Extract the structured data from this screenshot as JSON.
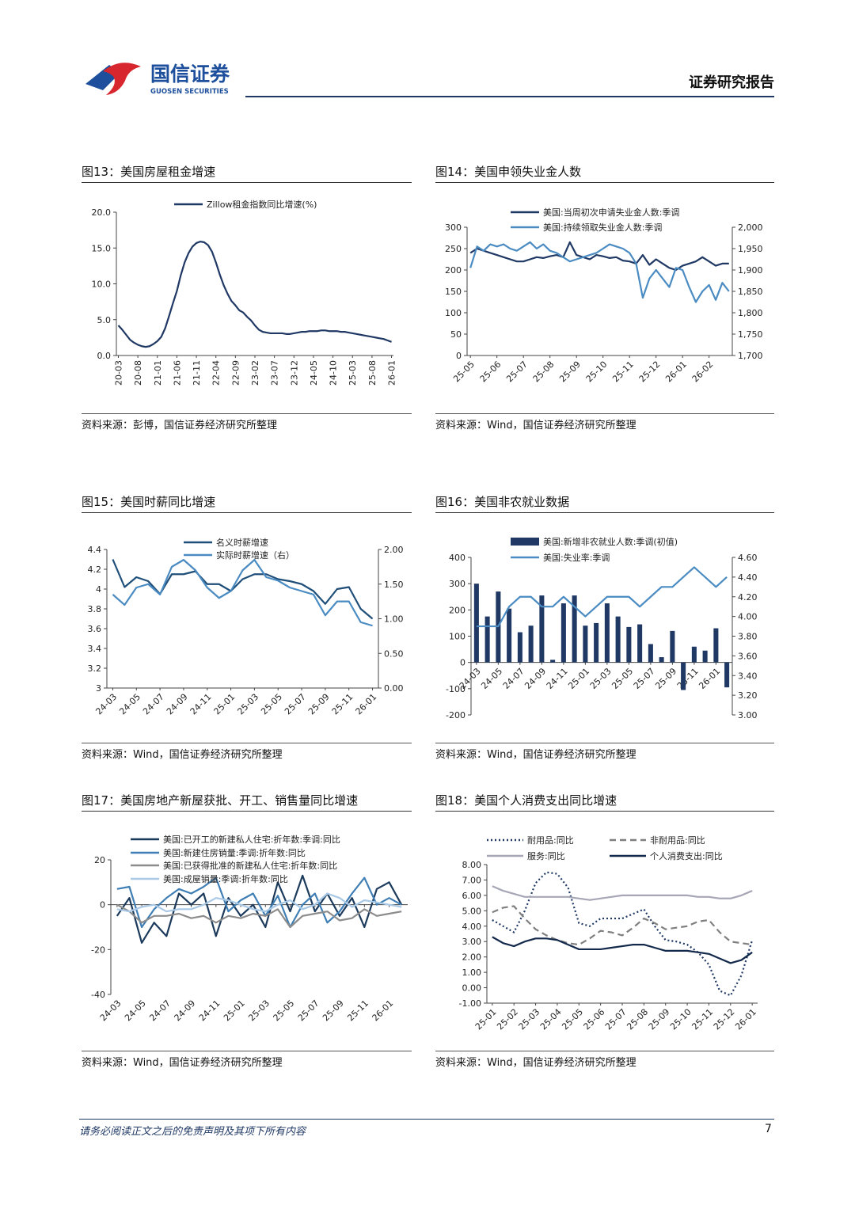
{
  "header": {
    "logo_cn": "国信证券",
    "logo_en": "GUOSEN SECURITIES",
    "report_type": "证券研究报告"
  },
  "footer": {
    "disclaimer": "请务必阅读正文之后的免责声明及其项下所有内容",
    "page": 7
  },
  "chart_data": [
    {
      "type": "line",
      "title": "图13：美国房屋租金增速",
      "source": "资料来源：彭博，国信证券经济研究所整理",
      "categories": [
        "20-03",
        null,
        null,
        null,
        null,
        "20-08",
        null,
        null,
        null,
        null,
        "21-01",
        null,
        null,
        null,
        null,
        "21-06",
        null,
        null,
        null,
        null,
        "21-11",
        null,
        null,
        null,
        null,
        "22-04",
        null,
        null,
        null,
        null,
        "22-09",
        null,
        null,
        null,
        null,
        "23-02",
        null,
        null,
        null,
        null,
        "23-07",
        null,
        null,
        null,
        null,
        "23-12",
        null,
        null,
        null,
        null,
        "24-05",
        null,
        null,
        null,
        null,
        "24-10",
        null,
        null,
        null,
        null,
        "25-03",
        null,
        null,
        null,
        null,
        "25-08",
        null,
        null,
        null,
        null,
        "26-01"
      ],
      "series": [
        {
          "name": "Zillow租金指数同比增速(%)",
          "color": "#1f3864",
          "values": [
            4.2,
            3.6,
            2.9,
            2.2,
            1.8,
            1.5,
            1.3,
            1.2,
            1.3,
            1.6,
            2.0,
            2.6,
            3.8,
            5.5,
            7.3,
            9.0,
            11.2,
            13.0,
            14.3,
            15.2,
            15.7,
            15.9,
            15.8,
            15.4,
            14.5,
            13.0,
            11.3,
            9.8,
            8.6,
            7.6,
            7.0,
            6.3,
            6.0,
            5.4,
            4.9,
            4.2,
            3.6,
            3.3,
            3.2,
            3.1,
            3.1,
            3.1,
            3.1,
            3.0,
            3.0,
            3.1,
            3.2,
            3.3,
            3.3,
            3.4,
            3.4,
            3.4,
            3.5,
            3.5,
            3.4,
            3.4,
            3.4,
            3.3,
            3.3,
            3.2,
            3.1,
            3.0,
            2.9,
            2.8,
            2.7,
            2.6,
            2.5,
            2.4,
            2.3,
            2.1,
            1.9
          ]
        }
      ],
      "ylim": [
        0,
        20
      ],
      "yticks": [
        {
          "value": 0,
          "label": "0.0"
        },
        {
          "value": 5,
          "label": "5.0"
        },
        {
          "value": 10,
          "label": "10.0"
        },
        {
          "value": 15,
          "label": "15.0"
        },
        {
          "value": 20,
          "label": "20.0"
        }
      ]
    },
    {
      "type": "line",
      "title": "图14：美国申领失业金人数",
      "source": "资料来源：Wind，国信证券经济研究所整理",
      "categories": [
        "25-05",
        null,
        null,
        null,
        "25-06",
        null,
        null,
        null,
        "25-07",
        null,
        null,
        null,
        "25-08",
        null,
        null,
        null,
        "25-09",
        null,
        null,
        null,
        "25-10",
        null,
        null,
        null,
        "25-11",
        null,
        null,
        null,
        "25-12",
        null,
        null,
        null,
        "26-01",
        null,
        null,
        null,
        "26-02",
        null,
        null,
        null
      ],
      "series": [
        {
          "name": "美国:当周初次申请失业金人数:季调",
          "color": "#1f3864",
          "values": [
            240,
            250,
            245,
            240,
            235,
            230,
            225,
            220,
            220,
            225,
            230,
            228,
            232,
            235,
            230,
            265,
            235,
            230,
            225,
            235,
            232,
            228,
            230,
            222,
            220,
            215,
            235,
            212,
            225,
            215,
            205,
            200,
            210,
            215,
            220,
            230,
            220,
            210,
            215,
            215
          ]
        },
        {
          "name": "美国:持续领取失业金人数:季调",
          "color": "#4a8bc2",
          "axis": "y2",
          "values": [
            1905,
            1955,
            1945,
            1960,
            1955,
            1960,
            1950,
            1945,
            1955,
            1965,
            1950,
            1960,
            1945,
            1940,
            1930,
            1920,
            1925,
            1930,
            1935,
            1940,
            1950,
            1960,
            1955,
            1950,
            1940,
            1915,
            1835,
            1880,
            1900,
            1880,
            1860,
            1905,
            1900,
            1860,
            1825,
            1850,
            1865,
            1830,
            1870,
            1850
          ]
        }
      ],
      "ylim": [
        0,
        300
      ],
      "yticks": [
        0,
        50,
        100,
        150,
        200,
        250,
        300
      ],
      "y2lim": [
        1700,
        2000
      ],
      "y2ticks": [
        {
          "value": 1700,
          "label": "1,700"
        },
        {
          "value": 1750,
          "label": "1,750"
        },
        {
          "value": 1800,
          "label": "1,800"
        },
        {
          "value": 1850,
          "label": "1,850"
        },
        {
          "value": 1900,
          "label": "1,900"
        },
        {
          "value": 1950,
          "label": "1,950"
        },
        {
          "value": 2000,
          "label": "2,000"
        }
      ]
    },
    {
      "type": "line",
      "title": "图15：美国时薪同比增速",
      "source": "资料来源：Wind，国信证券经济研究所整理",
      "categories": [
        "24-03",
        null,
        "24-05",
        null,
        "24-07",
        null,
        "24-09",
        null,
        "24-11",
        null,
        "25-01",
        null,
        "25-03",
        null,
        "25-05",
        null,
        "25-07",
        null,
        "25-09",
        null,
        "25-11",
        null,
        "26-01"
      ],
      "series": [
        {
          "name": "名义时薪增速",
          "color": "#1f4e79",
          "values": [
            4.3,
            4.02,
            4.12,
            4.08,
            3.95,
            4.15,
            4.15,
            4.18,
            4.05,
            4.05,
            3.98,
            4.1,
            4.15,
            4.15,
            4.1,
            4.08,
            4.05,
            3.98,
            3.85,
            4.0,
            4.02,
            3.8,
            3.7
          ]
        },
        {
          "name": "实际时薪增速（右）",
          "color": "#4a8bc2",
          "axis": "y2",
          "values": [
            1.35,
            1.2,
            1.45,
            1.5,
            1.35,
            1.75,
            1.85,
            1.7,
            1.45,
            1.3,
            1.4,
            1.7,
            1.85,
            1.6,
            1.55,
            1.45,
            1.4,
            1.35,
            1.05,
            1.25,
            1.25,
            0.95,
            0.9
          ]
        }
      ],
      "ylim": [
        3,
        4.4
      ],
      "yticks": [
        3,
        3.2,
        3.4,
        3.6,
        3.8,
        4,
        4.2,
        4.4
      ],
      "y2lim": [
        0,
        2
      ],
      "y2ticks": [
        {
          "value": 0,
          "label": "0.00"
        },
        {
          "value": 0.5,
          "label": "0.50"
        },
        {
          "value": 1,
          "label": "1.00"
        },
        {
          "value": 1.5,
          "label": "1.50"
        },
        {
          "value": 2,
          "label": "2.00"
        }
      ]
    },
    {
      "type": "bar",
      "title": "图16：美国非农就业数据",
      "source": "资料来源：Wind，国信证券经济研究所整理",
      "categories": [
        "24-03",
        null,
        "24-05",
        null,
        "24-07",
        null,
        "24-09",
        null,
        "24-11",
        null,
        "25-01",
        null,
        "25-03",
        null,
        "25-05",
        null,
        "25-07",
        null,
        "25-09",
        null,
        "25-11",
        null,
        "26-01",
        null
      ],
      "series": [
        {
          "name": "美国:新增非农就业人数:季调(初值)",
          "color": "#1f3864",
          "values": [
            300,
            175,
            270,
            205,
            115,
            140,
            255,
            10,
            225,
            255,
            140,
            150,
            225,
            175,
            135,
            145,
            70,
            20,
            120,
            -105,
            60,
            45,
            130,
            -95
          ]
        },
        {
          "name": "美国:失业率:季调",
          "color": "#4a8bc2",
          "type": "line",
          "axis": "y2",
          "values": [
            3.9,
            3.9,
            3.9,
            4.1,
            4.2,
            4.2,
            4.1,
            4.1,
            4.2,
            4.1,
            4.0,
            4.1,
            4.2,
            4.2,
            4.2,
            4.1,
            4.2,
            4.3,
            4.3,
            4.4,
            4.5,
            4.4,
            4.3,
            4.4
          ]
        }
      ],
      "ylim": [
        -200,
        400
      ],
      "yticks": [
        -200,
        -100,
        0,
        100,
        200,
        300,
        400
      ],
      "y2lim": [
        3,
        4.6
      ],
      "y2ticks": [
        {
          "value": 3,
          "label": "3.00"
        },
        {
          "value": 3.2,
          "label": "3.20"
        },
        {
          "value": 3.4,
          "label": "3.40"
        },
        {
          "value": 3.6,
          "label": "3.60"
        },
        {
          "value": 3.8,
          "label": "3.80"
        },
        {
          "value": 4,
          "label": "4.00"
        },
        {
          "value": 4.2,
          "label": "4.20"
        },
        {
          "value": 4.4,
          "label": "4.40"
        },
        {
          "value": 4.6,
          "label": "4.60"
        }
      ]
    },
    {
      "type": "line",
      "title": "图17：美国房地产新屋获批、开工、销售量同比增速",
      "source": "资料来源：Wind，国信证券经济研究所整理",
      "categories": [
        "24-03",
        null,
        "24-05",
        null,
        "24-07",
        null,
        "24-09",
        null,
        "24-11",
        null,
        "25-01",
        null,
        "25-03",
        null,
        "25-05",
        null,
        "25-07",
        null,
        "25-09",
        null,
        "25-11",
        null,
        "26-01",
        null
      ],
      "series": [
        {
          "name": "美国:已开工的新建私人住宅:折年数:季调:同比",
          "color": "#1b3a5c",
          "values": [
            -5,
            3,
            -17,
            -8,
            -14,
            5,
            0,
            5,
            -14,
            3,
            -5,
            0,
            -10,
            10,
            -3,
            13,
            -3,
            5,
            -5,
            3,
            -10,
            7,
            10,
            0
          ]
        },
        {
          "name": "美国:新建住房销量:季调:折年数:同比",
          "color": "#3f7fb5",
          "values": [
            7,
            8,
            -10,
            -2,
            3,
            7,
            5,
            8,
            12,
            -3,
            2,
            5,
            -5,
            4,
            -10,
            0,
            5,
            -8,
            -3,
            5,
            12,
            0,
            3,
            0
          ]
        },
        {
          "name": "美国:已获得批准的新建私人住宅:折年数:同比",
          "color": "#8c8c8c",
          "values": [
            0,
            -3,
            -8,
            -5,
            -5,
            -4,
            -6,
            -5,
            -8,
            -5,
            -6,
            -4,
            -5,
            -2,
            -10,
            -5,
            -4,
            -3,
            -7,
            -6,
            -2,
            -5,
            -4,
            -3
          ]
        },
        {
          "name": "美国:成屋销量:季调:折年数:同比",
          "color": "#a9c9e6",
          "values": [
            -2,
            -3,
            -1,
            0,
            -3,
            -2,
            -2,
            0,
            3,
            2,
            0,
            -2,
            -3,
            0,
            2,
            -2,
            0,
            5,
            3,
            -1,
            2,
            1,
            0,
            -1
          ]
        }
      ],
      "ylim": [
        -40,
        20
      ],
      "yticks": [
        -40,
        -20,
        0,
        20
      ]
    },
    {
      "type": "line",
      "title": "图18：美国个人消费支出同比增速",
      "source": "资料来源：Wind，国信证券经济研究所整理",
      "categories": [
        "25-01",
        null,
        "25-02",
        null,
        "25-03",
        null,
        "25-04",
        null,
        "25-05",
        null,
        "25-06",
        null,
        "25-07",
        null,
        "25-08",
        null,
        "25-09",
        null,
        "25-10",
        null,
        "25-11",
        null,
        "25-12",
        null,
        "26-01"
      ],
      "series": [
        {
          "name": "耐用品:同比",
          "color": "#1f3864",
          "dash": "dotted",
          "values": [
            4.4,
            4.0,
            3.6,
            5.0,
            6.8,
            7.5,
            7.4,
            6.5,
            4.2,
            4.0,
            4.5,
            4.5,
            4.5,
            4.8,
            5.1,
            4.0,
            3.1,
            3.0,
            2.8,
            2.3,
            1.5,
            -0.2,
            -0.5,
            0.8,
            3.1
          ]
        },
        {
          "name": "非耐用品:同比",
          "color": "#7f7f7f",
          "dash": "dashed",
          "values": [
            4.9,
            5.2,
            5.3,
            4.5,
            3.8,
            3.4,
            3.1,
            2.9,
            2.8,
            3.2,
            3.7,
            3.6,
            3.4,
            3.9,
            4.5,
            4.2,
            3.8,
            3.9,
            4.0,
            4.3,
            4.4,
            3.6,
            3.0,
            2.9,
            2.8
          ]
        },
        {
          "name": "服务:同比",
          "color": "#a6a6b6",
          "values": [
            6.6,
            6.3,
            6.1,
            5.9,
            5.9,
            5.9,
            5.9,
            5.9,
            5.8,
            5.7,
            5.8,
            5.9,
            6.0,
            6.0,
            6.0,
            6.0,
            6.0,
            6.0,
            6.0,
            5.9,
            5.9,
            5.8,
            5.8,
            6.0,
            6.3
          ]
        },
        {
          "name": "个人消费支出:同比",
          "color": "#13294b",
          "values": [
            3.3,
            2.9,
            2.7,
            3.0,
            3.2,
            3.2,
            3.1,
            2.8,
            2.5,
            2.5,
            2.5,
            2.6,
            2.7,
            2.8,
            2.8,
            2.6,
            2.4,
            2.4,
            2.4,
            2.3,
            2.2,
            1.9,
            1.6,
            1.8,
            2.3
          ]
        }
      ],
      "ylim": [
        -1,
        8
      ],
      "yticks": [
        {
          "value": -1,
          "label": "-1.00"
        },
        {
          "value": 0,
          "label": "0.00"
        },
        {
          "value": 1,
          "label": "1.00"
        },
        {
          "value": 2,
          "label": "2.00"
        },
        {
          "value": 3,
          "label": "3.00"
        },
        {
          "value": 4,
          "label": "4.00"
        },
        {
          "value": 5,
          "label": "5.00"
        },
        {
          "value": 6,
          "label": "6.00"
        },
        {
          "value": 7,
          "label": "7.00"
        },
        {
          "value": 8,
          "label": "8.00"
        }
      ]
    }
  ]
}
